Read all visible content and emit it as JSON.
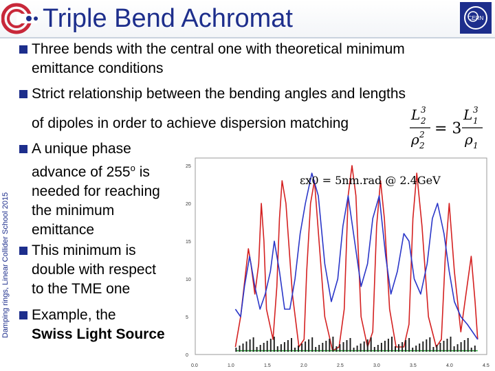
{
  "header": {
    "title": "Triple Bend Achromat"
  },
  "sidebar": {
    "footer_text": "Damping rings, Linear Collider School 2015"
  },
  "logos": {
    "left": "esrf-logo-icon",
    "right": "cern-logo-icon"
  },
  "bullets": [
    {
      "lines": [
        "Three bends with the central one with theoretical minimum",
        "emittance conditions"
      ]
    },
    {
      "lines": [
        "Strict relationship between the bending angles and lengths",
        "of dipoles in order to achieve dispersion matching"
      ]
    },
    {
      "lines": [
        "A unique phase",
        "advance of 255",
        "needed for reaching",
        "the minimum",
        "emittance"
      ],
      "superscript": "o",
      "suffix": " is"
    },
    {
      "lines": [
        "This minimum is",
        "double with respect",
        "to the TME one"
      ]
    },
    {
      "lines": [
        "Example, the",
        "Swiss Light Source"
      ]
    }
  ],
  "formula": {
    "lhs_num": "L",
    "lhs_num_sub": "2",
    "lhs_num_sup": "3",
    "lhs_den": "ρ",
    "lhs_den_sub": "2",
    "lhs_den_sup": "2",
    "eq": "= 3",
    "rhs_num": "L",
    "rhs_num_sub": "1",
    "rhs_num_sup": "3",
    "rhs_den": "ρ",
    "rhs_den_sub": "1"
  },
  "chart_data": {
    "type": "line",
    "annotation": "εx0 = 5nm.rad @ 2.4GeV",
    "x_ticks": [
      "0.0",
      "1.0",
      "1.5",
      "2.0",
      "2.5",
      "3.0",
      "3.5",
      "4.0",
      "4.5"
    ],
    "y_ticks": [
      "0",
      "5",
      "10",
      "15",
      "20",
      "25"
    ],
    "xlim": [
      0,
      4.5
    ],
    "ylim": [
      0,
      26
    ],
    "grid": false,
    "series": [
      {
        "color": "#d42020",
        "x": [
          0.62,
          0.7,
          0.78,
          0.82,
          0.86,
          0.92,
          0.98,
          1.02,
          1.06,
          1.1,
          1.2,
          1.26,
          1.3,
          1.34,
          1.4,
          1.5,
          1.6,
          1.68,
          1.72,
          1.78,
          1.84,
          1.92,
          2.0,
          2.12,
          2.22,
          2.3,
          2.36,
          2.42,
          2.48,
          2.56,
          2.66,
          2.74,
          2.8,
          2.86,
          2.92,
          3.0,
          3.1,
          3.22,
          3.3,
          3.36,
          3.42,
          3.5,
          3.6,
          3.72,
          3.8,
          3.86,
          3.92,
          4.0,
          4.1,
          4.18,
          4.26,
          4.32,
          4.36
        ],
        "y": [
          1,
          5,
          11,
          14,
          12,
          8,
          12,
          20,
          15,
          6,
          2,
          9,
          18,
          23,
          20,
          8,
          1,
          2,
          11,
          20,
          23,
          14,
          5,
          0.5,
          1,
          6,
          21,
          25,
          21,
          5,
          1,
          3,
          17,
          23,
          18,
          6,
          1,
          1,
          4,
          18,
          24,
          17,
          5,
          1,
          2,
          13,
          20,
          11,
          3,
          8,
          13,
          7,
          2
        ]
      },
      {
        "color": "#2a36c8",
        "x": [
          0.62,
          0.7,
          0.76,
          0.84,
          0.92,
          1.0,
          1.08,
          1.16,
          1.22,
          1.3,
          1.38,
          1.46,
          1.54,
          1.62,
          1.7,
          1.8,
          1.9,
          2.0,
          2.1,
          2.2,
          2.28,
          2.36,
          2.46,
          2.56,
          2.66,
          2.74,
          2.84,
          2.94,
          3.02,
          3.12,
          3.22,
          3.3,
          3.38,
          3.48,
          3.58,
          3.66,
          3.74,
          3.84,
          3.92,
          4.0,
          4.1,
          4.2,
          4.28,
          4.36
        ],
        "y": [
          6,
          5,
          9,
          13,
          9,
          6,
          8,
          11,
          15,
          11,
          6,
          6,
          10,
          16,
          20,
          24,
          21,
          12,
          7,
          10,
          17,
          21,
          15,
          9,
          12,
          18,
          21,
          13,
          8,
          11,
          16,
          15,
          10,
          8,
          12,
          18,
          20,
          16,
          11,
          7,
          5,
          4,
          3,
          2
        ]
      },
      {
        "color": "#20a030",
        "x": [
          0.62,
          4.36
        ],
        "y": [
          0.5,
          0.5
        ]
      }
    ]
  }
}
